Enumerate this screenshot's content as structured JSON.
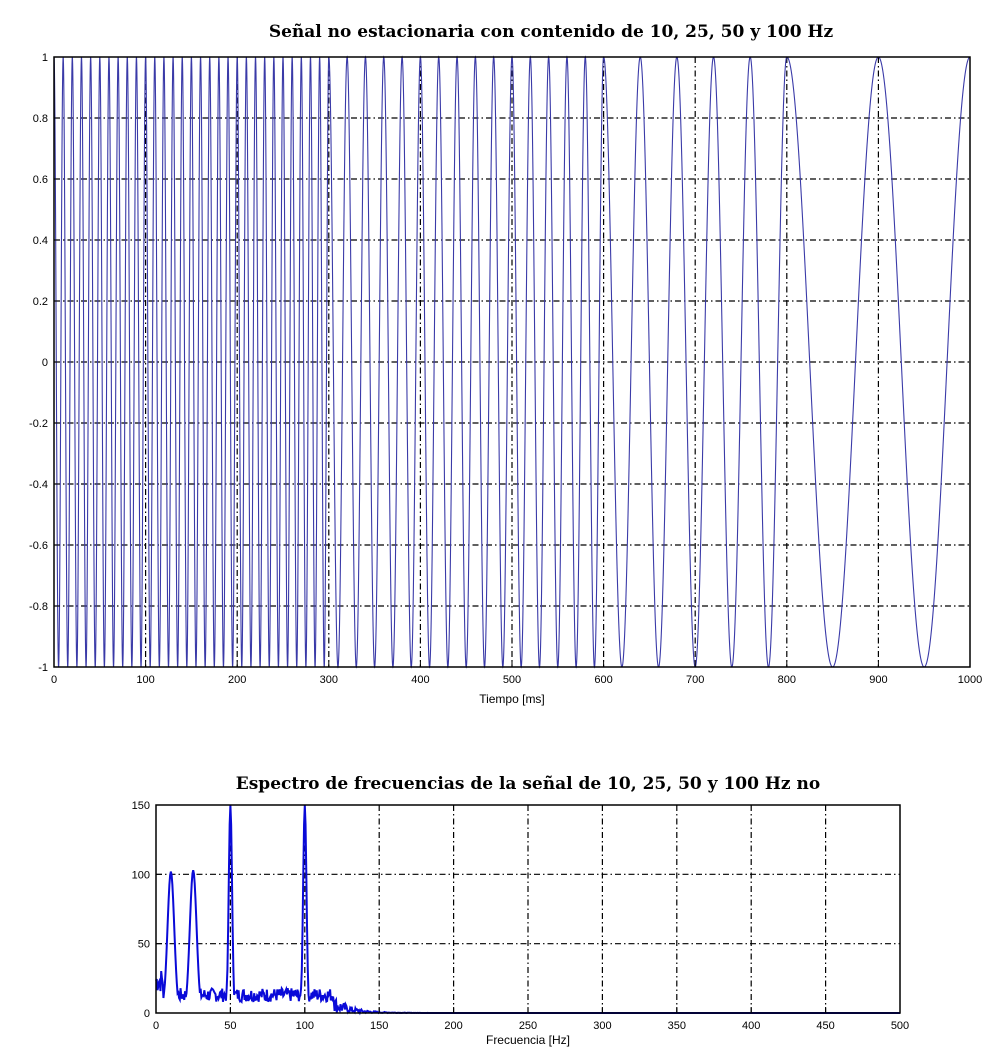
{
  "chart_data": [
    {
      "type": "line",
      "title": "Señal  no estacionaria con contenido de 10, 25, 50 y 100 Hz",
      "xlabel": "Tiempo [ms]",
      "ylabel": "",
      "xlim": [
        0,
        1000
      ],
      "ylim": [
        -1,
        1
      ],
      "xticks": [
        0,
        100,
        200,
        300,
        400,
        500,
        600,
        700,
        800,
        900,
        1000
      ],
      "yticks": [
        -1,
        -0.8,
        -0.6,
        -0.4,
        -0.2,
        0,
        0.2,
        0.4,
        0.6,
        0.8,
        1
      ],
      "grid": true,
      "segments": [
        {
          "t_start": 0,
          "t_end": 300,
          "frequency_hz": 100
        },
        {
          "t_start": 300,
          "t_end": 600,
          "frequency_hz": 50
        },
        {
          "t_start": 600,
          "t_end": 800,
          "frequency_hz": 25
        },
        {
          "t_start": 800,
          "t_end": 1000,
          "frequency_hz": 10
        }
      ],
      "color": "#3a3aa8"
    },
    {
      "type": "line",
      "title": "Espectro de frecuencias de la señal de 10, 25, 50 y 100 Hz no",
      "xlabel": "Frecuencia [Hz]",
      "ylabel": "",
      "xlim": [
        0,
        500
      ],
      "ylim": [
        0,
        150
      ],
      "xticks": [
        0,
        50,
        100,
        150,
        200,
        250,
        300,
        350,
        400,
        450,
        500
      ],
      "yticks": [
        0,
        50,
        100,
        150
      ],
      "grid": true,
      "peaks": [
        {
          "x": 10,
          "y": 102
        },
        {
          "x": 25,
          "y": 103
        },
        {
          "x": 50,
          "y": 150
        },
        {
          "x": 100,
          "y": 150
        }
      ],
      "color": "#0a0ad8"
    }
  ]
}
